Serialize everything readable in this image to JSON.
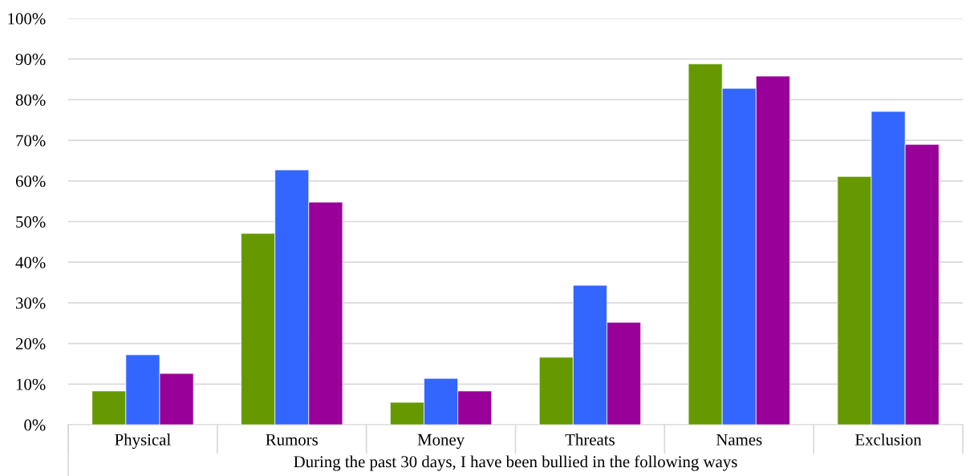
{
  "chart_data": {
    "type": "bar",
    "xlabel": "During the past 30 days, I have been bullied in the following ways",
    "categories": [
      "Physical",
      "Rumors",
      "Money",
      "Threats",
      "Names",
      "Exclusion"
    ],
    "series": [
      {
        "color": "#669900",
        "values": [
          8.3,
          47.1,
          5.5,
          16.6,
          88.8,
          61.1
        ]
      },
      {
        "color": "#3366ff",
        "values": [
          17.2,
          62.7,
          11.4,
          34.3,
          82.8,
          77.1
        ]
      },
      {
        "color": "#990099",
        "values": [
          12.6,
          54.8,
          8.3,
          25.2,
          85.8,
          69.0
        ]
      }
    ],
    "ylim": [
      0,
      100
    ],
    "yticks": [
      {
        "value": 0,
        "label": "0%"
      },
      {
        "value": 10,
        "label": "10%"
      },
      {
        "value": 20,
        "label": "20%"
      },
      {
        "value": 30,
        "label": "30%"
      },
      {
        "value": 40,
        "label": "40%"
      },
      {
        "value": 50,
        "label": "50%"
      },
      {
        "value": 60,
        "label": "60%"
      },
      {
        "value": 70,
        "label": "70%"
      },
      {
        "value": 80,
        "label": "80%"
      },
      {
        "value": 90,
        "label": "90%"
      },
      {
        "value": 100,
        "label": "100%"
      }
    ],
    "grid": "y"
  }
}
